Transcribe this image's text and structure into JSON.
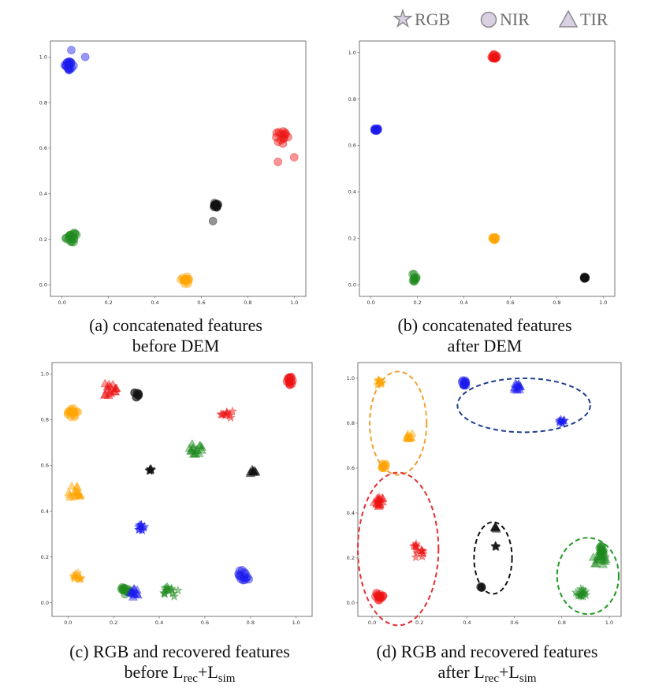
{
  "legend": [
    {
      "label": "RGB",
      "marker": "star-icon"
    },
    {
      "label": "NIR",
      "marker": "circle-icon"
    },
    {
      "label": "TIR",
      "marker": "triangle-icon"
    }
  ],
  "colors": {
    "red": "#ee1111",
    "blue": "#1a1aee",
    "green": "#1e8a1e",
    "orange": "#ffa500",
    "black": "#111111",
    "legend_fill": "#d9d0e3",
    "legend_stroke": "#8a8a8a"
  },
  "chart_data": [
    {
      "type": "scatter",
      "title_line1": "(a)  concatenated features",
      "title_line2": "before DEM",
      "xlim": [
        -0.05,
        1.05
      ],
      "ylim": [
        -0.05,
        1.07
      ],
      "xticks": [
        "0.0",
        "0.2",
        "0.4",
        "0.6",
        "0.8",
        "1.0"
      ],
      "yticks": [
        "0.0",
        "0.2",
        "0.4",
        "0.6",
        "0.8",
        "1.0"
      ],
      "clusters": [
        {
          "color": "blue",
          "marker": "circle",
          "x": 0.03,
          "y": 0.96,
          "spread": 0.014,
          "n": 18
        },
        {
          "color": "blue",
          "marker": "circle",
          "x": 0.04,
          "y": 1.03,
          "spread": 0.0,
          "n": 1
        },
        {
          "color": "blue",
          "marker": "circle",
          "x": 0.1,
          "y": 1.0,
          "spread": 0.0,
          "n": 1
        },
        {
          "color": "red",
          "marker": "circle",
          "x": 0.95,
          "y": 0.65,
          "spread": 0.022,
          "n": 14
        },
        {
          "color": "red",
          "marker": "circle",
          "x": 0.93,
          "y": 0.54,
          "spread": 0.0,
          "n": 1
        },
        {
          "color": "red",
          "marker": "circle",
          "x": 1.0,
          "y": 0.56,
          "spread": 0.0,
          "n": 1
        },
        {
          "color": "black",
          "marker": "circle",
          "x": 0.66,
          "y": 0.35,
          "spread": 0.008,
          "n": 16
        },
        {
          "color": "black",
          "marker": "circle",
          "x": 0.65,
          "y": 0.28,
          "spread": 0.0,
          "n": 1
        },
        {
          "color": "green",
          "marker": "circle",
          "x": 0.04,
          "y": 0.21,
          "spread": 0.016,
          "n": 18
        },
        {
          "color": "orange",
          "marker": "circle",
          "x": 0.53,
          "y": 0.02,
          "spread": 0.012,
          "n": 14
        }
      ]
    },
    {
      "type": "scatter",
      "title_line1": "(b) concatenated features",
      "title_line2": "after DEM",
      "xlim": [
        -0.05,
        1.05
      ],
      "ylim": [
        -0.05,
        1.05
      ],
      "xticks": [
        "0.0",
        "0.2",
        "0.4",
        "0.6",
        "0.8",
        "1.0"
      ],
      "yticks": [
        "0.0",
        "0.2",
        "0.4",
        "0.6",
        "0.8",
        "1.0"
      ],
      "clusters": [
        {
          "color": "red",
          "marker": "circle",
          "x": 0.53,
          "y": 0.98,
          "spread": 0.008,
          "n": 14
        },
        {
          "color": "blue",
          "marker": "circle",
          "x": 0.02,
          "y": 0.67,
          "spread": 0.006,
          "n": 12
        },
        {
          "color": "orange",
          "marker": "circle",
          "x": 0.53,
          "y": 0.2,
          "spread": 0.005,
          "n": 12
        },
        {
          "color": "green",
          "marker": "circle",
          "x": 0.18,
          "y": 0.03,
          "spread": 0.012,
          "n": 10
        },
        {
          "color": "black",
          "marker": "circle",
          "x": 0.92,
          "y": 0.03,
          "spread": 0.003,
          "n": 10
        }
      ]
    },
    {
      "type": "scatter",
      "title_line1": "(c) RGB and recovered features",
      "title_line2_main": "before L",
      "title_line2_sub1": "rec",
      "title_line2_mid": "+L",
      "title_line2_sub2": "sim",
      "xlim": [
        -0.07,
        1.07
      ],
      "ylim": [
        -0.06,
        1.05
      ],
      "xticks": [
        "0.0",
        "0.2",
        "0.4",
        "0.6",
        "0.8",
        "1.0"
      ],
      "yticks": [
        "0.0",
        "0.2",
        "0.4",
        "0.6",
        "0.8",
        "1.0"
      ],
      "clusters": [
        {
          "color": "red",
          "marker": "circle",
          "x": 0.97,
          "y": 0.97,
          "spread": 0.012,
          "n": 14
        },
        {
          "color": "red",
          "marker": "triangle",
          "x": 0.18,
          "y": 0.93,
          "spread": 0.02,
          "n": 16
        },
        {
          "color": "red",
          "marker": "star",
          "x": 0.7,
          "y": 0.83,
          "spread": 0.02,
          "n": 10
        },
        {
          "color": "black",
          "marker": "circle",
          "x": 0.3,
          "y": 0.91,
          "spread": 0.008,
          "n": 10
        },
        {
          "color": "black",
          "marker": "star",
          "x": 0.36,
          "y": 0.58,
          "spread": 0.004,
          "n": 8
        },
        {
          "color": "black",
          "marker": "triangle",
          "x": 0.81,
          "y": 0.57,
          "spread": 0.008,
          "n": 10
        },
        {
          "color": "orange",
          "marker": "circle",
          "x": 0.02,
          "y": 0.83,
          "spread": 0.016,
          "n": 14
        },
        {
          "color": "orange",
          "marker": "triangle",
          "x": 0.03,
          "y": 0.48,
          "spread": 0.02,
          "n": 16
        },
        {
          "color": "orange",
          "marker": "star",
          "x": 0.04,
          "y": 0.12,
          "spread": 0.014,
          "n": 12
        },
        {
          "color": "green",
          "marker": "triangle",
          "x": 0.56,
          "y": 0.67,
          "spread": 0.018,
          "n": 16
        },
        {
          "color": "green",
          "marker": "circle",
          "x": 0.25,
          "y": 0.05,
          "spread": 0.014,
          "n": 14
        },
        {
          "color": "green",
          "marker": "star",
          "x": 0.45,
          "y": 0.05,
          "spread": 0.02,
          "n": 14
        },
        {
          "color": "blue",
          "marker": "star",
          "x": 0.32,
          "y": 0.33,
          "spread": 0.01,
          "n": 12
        },
        {
          "color": "blue",
          "marker": "circle",
          "x": 0.77,
          "y": 0.12,
          "spread": 0.018,
          "n": 14
        },
        {
          "color": "blue",
          "marker": "triangle",
          "x": 0.29,
          "y": 0.04,
          "spread": 0.012,
          "n": 12
        }
      ]
    },
    {
      "type": "scatter",
      "title_line1": "(d) RGB and recovered features",
      "title_line2_main": "after L",
      "title_line2_sub1": "rec",
      "title_line2_mid": "+L",
      "title_line2_sub2": "sim",
      "xlim": [
        -0.06,
        1.05
      ],
      "ylim": [
        -0.06,
        1.07
      ],
      "xticks": [
        "0.0",
        "0.2",
        "0.4",
        "0.6",
        "0.8",
        "1.0"
      ],
      "yticks": [
        "0.0",
        "0.2",
        "0.4",
        "0.6",
        "0.8",
        "1.0"
      ],
      "clusters": [
        {
          "color": "orange",
          "marker": "star",
          "x": 0.03,
          "y": 0.98,
          "spread": 0.008,
          "n": 10
        },
        {
          "color": "orange",
          "marker": "triangle",
          "x": 0.16,
          "y": 0.74,
          "spread": 0.01,
          "n": 10
        },
        {
          "color": "orange",
          "marker": "circle",
          "x": 0.05,
          "y": 0.61,
          "spread": 0.007,
          "n": 10
        },
        {
          "color": "blue",
          "marker": "circle",
          "x": 0.39,
          "y": 0.98,
          "spread": 0.008,
          "n": 12
        },
        {
          "color": "blue",
          "marker": "triangle",
          "x": 0.61,
          "y": 0.96,
          "spread": 0.01,
          "n": 12
        },
        {
          "color": "blue",
          "marker": "star",
          "x": 0.8,
          "y": 0.81,
          "spread": 0.008,
          "n": 10
        },
        {
          "color": "red",
          "marker": "triangle",
          "x": 0.03,
          "y": 0.45,
          "spread": 0.014,
          "n": 16
        },
        {
          "color": "red",
          "marker": "star",
          "x": 0.19,
          "y": 0.23,
          "spread": 0.02,
          "n": 14
        },
        {
          "color": "red",
          "marker": "circle",
          "x": 0.03,
          "y": 0.03,
          "spread": 0.012,
          "n": 14
        },
        {
          "color": "black",
          "marker": "triangle",
          "x": 0.52,
          "y": 0.33,
          "spread": 0.004,
          "n": 6
        },
        {
          "color": "black",
          "marker": "star",
          "x": 0.52,
          "y": 0.25,
          "spread": 0.003,
          "n": 5
        },
        {
          "color": "black",
          "marker": "circle",
          "x": 0.46,
          "y": 0.07,
          "spread": 0.003,
          "n": 5
        },
        {
          "color": "green",
          "marker": "triangle",
          "x": 0.96,
          "y": 0.2,
          "spread": 0.022,
          "n": 20
        },
        {
          "color": "green",
          "marker": "circle",
          "x": 0.97,
          "y": 0.24,
          "spread": 0.01,
          "n": 10
        },
        {
          "color": "green",
          "marker": "star",
          "x": 0.88,
          "y": 0.04,
          "spread": 0.014,
          "n": 14
        }
      ],
      "ellipses": [
        {
          "color": "#f0a030",
          "cx": 0.11,
          "cy": 0.8,
          "rx": 0.12,
          "ry": 0.23
        },
        {
          "color": "#1f3d8f",
          "cx": 0.64,
          "cy": 0.88,
          "rx": 0.28,
          "ry": 0.12
        },
        {
          "color": "#e53030",
          "cx": 0.11,
          "cy": 0.24,
          "rx": 0.17,
          "ry": 0.34
        },
        {
          "color": "#111111",
          "cx": 0.51,
          "cy": 0.2,
          "rx": 0.08,
          "ry": 0.16
        },
        {
          "color": "#1f9a1f",
          "cx": 0.91,
          "cy": 0.12,
          "rx": 0.13,
          "ry": 0.17
        }
      ]
    }
  ]
}
